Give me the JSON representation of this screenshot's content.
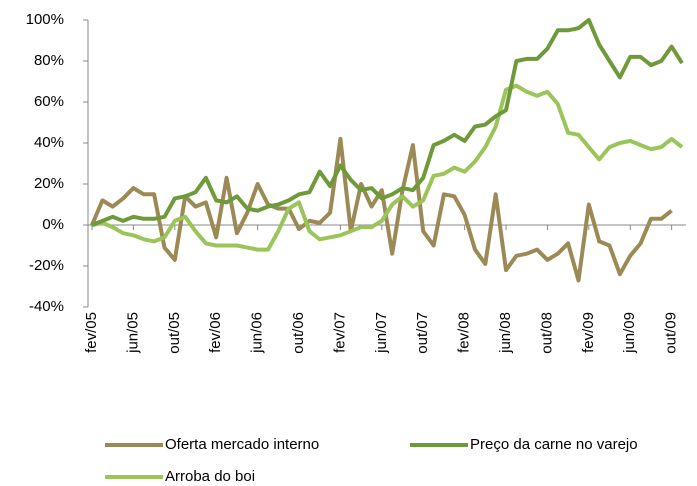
{
  "chart_data": {
    "type": "line",
    "categories": [
      "fev/05",
      null,
      null,
      null,
      "jun/05",
      null,
      null,
      null,
      "out/05",
      null,
      null,
      null,
      "fev/06",
      null,
      null,
      null,
      "jun/06",
      null,
      null,
      null,
      "out/06",
      null,
      null,
      null,
      "fev/07",
      null,
      null,
      null,
      "jun/07",
      null,
      null,
      null,
      "out/07",
      null,
      null,
      null,
      "fev/08",
      null,
      null,
      null,
      "jun/08",
      null,
      null,
      null,
      "out/08",
      null,
      null,
      null,
      "fev/09",
      null,
      null,
      null,
      "jun/09",
      null,
      null,
      null,
      "out/09",
      null
    ],
    "series": [
      {
        "name": "Oferta mercado interno",
        "color": "#9c8a56",
        "values": [
          0,
          12,
          9,
          13,
          18,
          15,
          15,
          -11,
          -17,
          14,
          9,
          11,
          -6,
          23,
          -4,
          6,
          20,
          10,
          8,
          8,
          -2,
          2,
          1,
          6,
          42,
          -3,
          20,
          9,
          17,
          -14,
          17,
          39,
          -3,
          -10,
          15,
          14,
          5,
          -12,
          -19,
          15,
          -22,
          -15,
          -14,
          -12,
          -17,
          -14,
          -9,
          -27,
          10,
          -8,
          -10,
          -24,
          -15,
          -9,
          3,
          3,
          7,
          null
        ]
      },
      {
        "name": "Preço da carne no varejo",
        "color": "#6e9a3a",
        "values": [
          0,
          2,
          4,
          2,
          4,
          3,
          3,
          4,
          13,
          14,
          16,
          23,
          12,
          11,
          14,
          8,
          7,
          9,
          10,
          12,
          15,
          16,
          26,
          19,
          29,
          22,
          17,
          18,
          13,
          15,
          18,
          17,
          23,
          39,
          41,
          44,
          41,
          48,
          49,
          53,
          56,
          80,
          81,
          81,
          86,
          95,
          95,
          96,
          100,
          88,
          80,
          72,
          82,
          82,
          78,
          80,
          87,
          79
        ]
      },
      {
        "name": "Arroba do boi",
        "color": "#9bc45a",
        "values": [
          0,
          1,
          -1,
          -4,
          -5,
          -7,
          -8,
          -6,
          2,
          4,
          -3,
          -9,
          -10,
          -10,
          -10,
          -11,
          -12,
          -12,
          -3,
          8,
          11,
          -3,
          -7,
          -6,
          -5,
          -3,
          -1,
          -1,
          2,
          10,
          14,
          9,
          12,
          24,
          25,
          28,
          26,
          31,
          38,
          48,
          66,
          68,
          65,
          63,
          65,
          59,
          45,
          44,
          38,
          32,
          38,
          40,
          41,
          39,
          37,
          38,
          42,
          38
        ]
      }
    ],
    "ylim": [
      -40,
      100
    ],
    "yticks": [
      {
        "value": -40,
        "label": "-40%"
      },
      {
        "value": -20,
        "label": "-20%"
      },
      {
        "value": 0,
        "label": "0%"
      },
      {
        "value": 20,
        "label": "20%"
      },
      {
        "value": 40,
        "label": "40%"
      },
      {
        "value": 60,
        "label": "60%"
      },
      {
        "value": 80,
        "label": "80%"
      },
      {
        "value": 100,
        "label": "100%"
      }
    ],
    "grid": false
  }
}
